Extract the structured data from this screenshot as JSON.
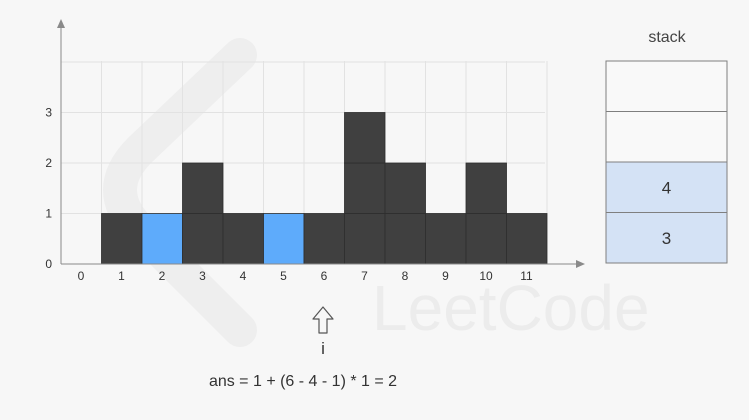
{
  "chart_data": {
    "type": "bar",
    "categories": [
      "0",
      "1",
      "2",
      "3",
      "4",
      "5",
      "6",
      "7",
      "8",
      "9",
      "10",
      "11"
    ],
    "values": [
      0,
      1,
      1,
      2,
      1,
      1,
      1,
      3,
      2,
      1,
      2,
      1
    ],
    "highlighted": [
      2,
      5
    ],
    "y_ticks": [
      "0",
      "1",
      "2",
      "3"
    ],
    "ylim": [
      0,
      4
    ],
    "colors": {
      "bar": "#404040",
      "highlight": "#5eabfb",
      "grid": "#e2e2e2",
      "axis": "#8a8a8a"
    }
  },
  "stack": {
    "title": "stack",
    "slots": [
      "",
      "",
      "4",
      "3"
    ],
    "colors": {
      "filled": "#d4e2f5",
      "empty": "#f9f9f9",
      "border": "#7f7f7f"
    }
  },
  "pointer": {
    "label": "i",
    "icon": "up-arrow-outline-icon",
    "index": 6
  },
  "formula": "ans = 1 + (6 - 4 - 1) * 1 = 2",
  "watermark": {
    "text": "LeetCode"
  }
}
